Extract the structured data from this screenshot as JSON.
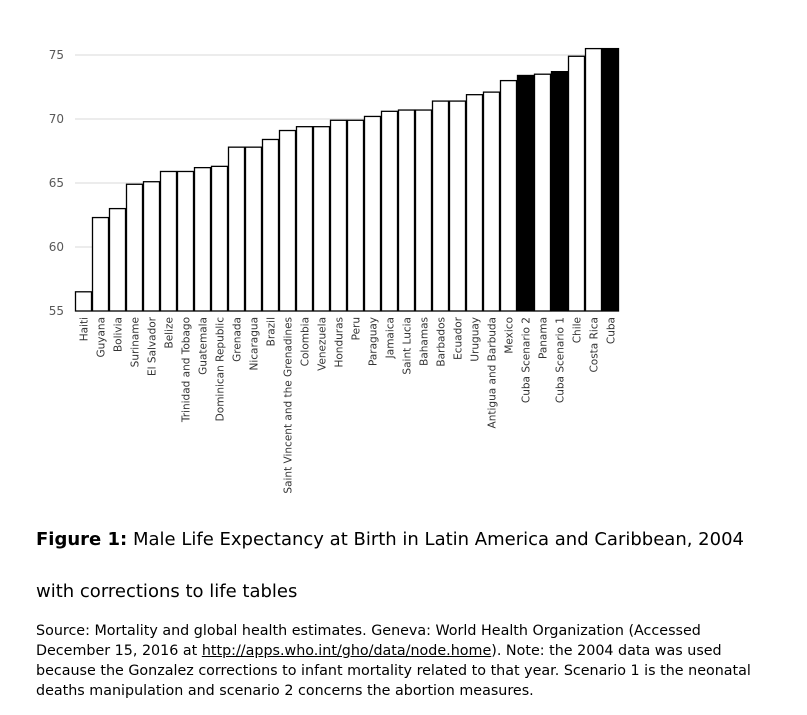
{
  "chart_data": {
    "type": "bar",
    "title": "",
    "xlabel": "",
    "ylabel": "",
    "ylim": [
      55,
      75.5
    ],
    "yticks": [
      55,
      60,
      65,
      70,
      75
    ],
    "grid": "horizontal",
    "legend": "none",
    "colors": {
      "normal": "#ffffff",
      "highlight": "#000000",
      "outline": "#000000",
      "grid": "#d9d9d9",
      "axis_text": "#595959"
    },
    "categories": [
      "Haiti",
      "Guyana",
      "Bolivia",
      "Suriname",
      "El Salvador",
      "Belize",
      "Trinidad and Tobago",
      "Guatemala",
      "Dominican Republic",
      "Grenada",
      "Nicaragua",
      "Brazil",
      "Saint Vincent and the Grenadines",
      "Colombia",
      "Venezuela",
      "Honduras",
      "Peru",
      "Paraguay",
      "Jamaica",
      "Saint Lucia",
      "Bahamas",
      "Barbados",
      "Ecuador",
      "Uruguay",
      "Antigua and Barbuda",
      "Mexico",
      "Cuba Scenario 2",
      "Panama",
      "Cuba Scenario 1",
      "Chile",
      "Costa Rica",
      "Cuba"
    ],
    "values": [
      56.5,
      62.3,
      63.0,
      64.9,
      65.1,
      65.9,
      65.9,
      66.2,
      66.3,
      67.8,
      67.8,
      68.4,
      69.1,
      69.4,
      69.4,
      69.9,
      69.9,
      70.2,
      70.6,
      70.7,
      70.7,
      71.4,
      71.4,
      71.9,
      72.1,
      73.0,
      73.4,
      73.5,
      73.7,
      74.9,
      75.5,
      75.5
    ],
    "highlighted": [
      "Cuba Scenario 2",
      "Cuba Scenario 1",
      "Cuba"
    ]
  },
  "caption": {
    "label": "Figure 1:",
    "text": " Male Life Expectancy at Birth in Latin America and Caribbean, 2004 with corrections to life tables"
  },
  "source": {
    "text_before": "Source: Mortality and global health estimates. Geneva: World Health Organization (Accessed December 15, 2016 at ",
    "link": "http://apps.who.int/gho/data/node.home",
    "text_after": "). Note: the 2004 data was used because the Gonzalez corrections to infant mortality related to that year. Scenario 1 is the neonatal deaths manipulation and scenario 2 concerns the abortion measures."
  }
}
